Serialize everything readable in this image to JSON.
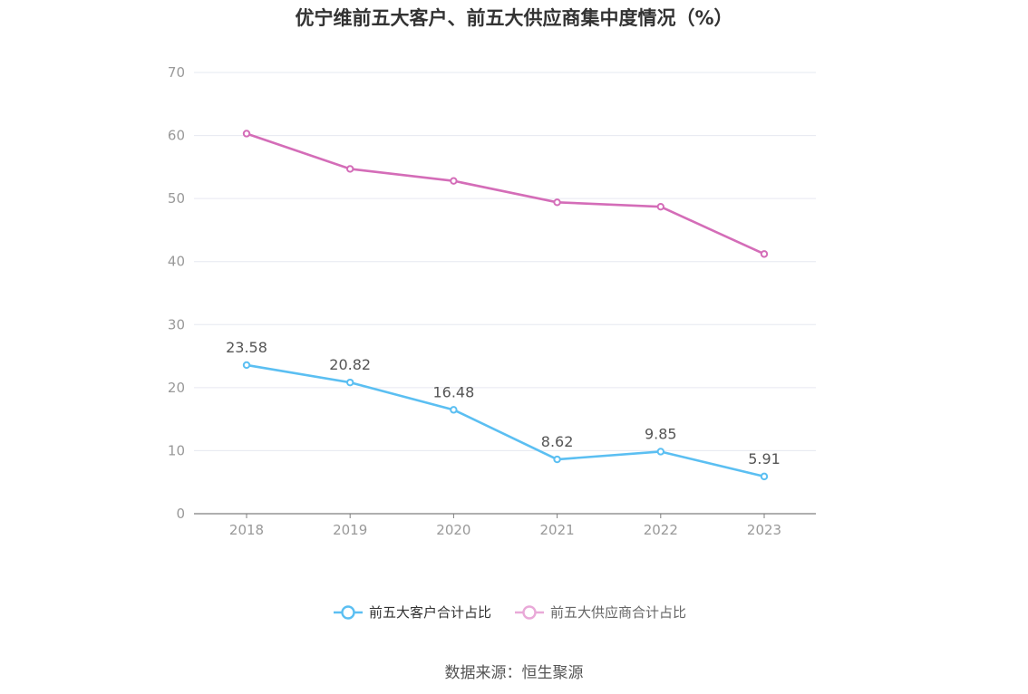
{
  "chart_data": {
    "type": "line",
    "title": "优宁维前五大客户、前五大供应商集中度情况（%）",
    "categories": [
      "2018",
      "2019",
      "2020",
      "2021",
      "2022",
      "2023"
    ],
    "ylim": [
      0,
      70
    ],
    "yticks": [
      0,
      10,
      20,
      30,
      40,
      50,
      60,
      70
    ],
    "xlabel": "",
    "ylabel": "",
    "grid": true,
    "legend_position": "bottom-center",
    "series": [
      {
        "name": "前五大客户合计占比",
        "color": "#5bbff2",
        "values": [
          23.58,
          20.82,
          16.48,
          8.62,
          9.85,
          5.91
        ],
        "data_labels": [
          "23.58",
          "20.82",
          "16.48",
          "8.62",
          "9.85",
          "5.91"
        ]
      },
      {
        "name": "前五大供应商合计占比",
        "color": "#d46db8",
        "legend_color": "#e9a9d8",
        "values": [
          60.3,
          54.7,
          52.8,
          49.4,
          48.7,
          41.2
        ],
        "data_labels": []
      }
    ]
  },
  "source": "数据来源：恒生聚源"
}
